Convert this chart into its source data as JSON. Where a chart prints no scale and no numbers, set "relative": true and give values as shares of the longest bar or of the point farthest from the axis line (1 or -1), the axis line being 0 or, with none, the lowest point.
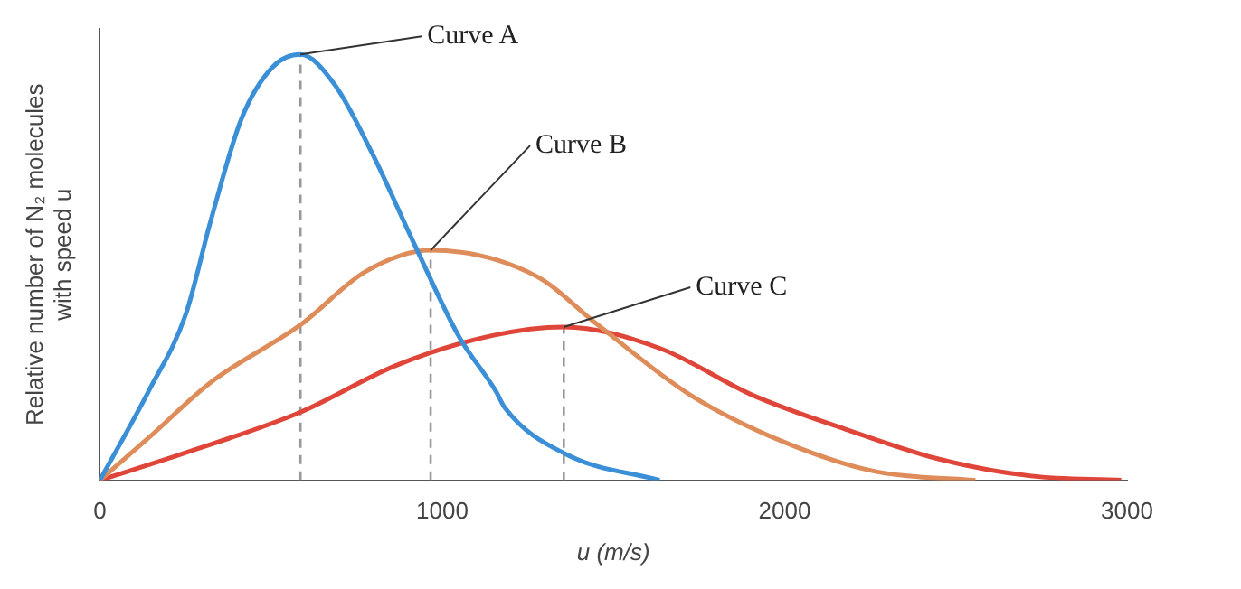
{
  "chart_data": {
    "type": "line",
    "relative": true,
    "xlabel": "u (m/s)",
    "ylabel": "Relative number of N₂ molecules\nwith speed u",
    "xlim": [
      0,
      3000
    ],
    "xticks": [
      0,
      1000,
      2000,
      3000
    ],
    "grid": false,
    "legend": false,
    "marker": "none",
    "tick_labels": "x",
    "series": [
      {
        "name": "Curve A",
        "color": "#3a8fd6",
        "x": [
          0,
          143,
          251,
          324,
          414,
          504,
          586,
          685,
          794,
          921,
          1047,
          1156,
          1183,
          1364,
          1635
        ],
        "values": [
          0,
          0.21,
          0.39,
          0.61,
          0.85,
          0.97,
          1,
          0.93,
          0.77,
          0.55,
          0.34,
          0.21,
          0.17,
          0.06,
          0
        ]
      },
      {
        "name": "Curve B",
        "color": "#de8c5a",
        "x": [
          0,
          143,
          324,
          586,
          776,
          966,
          1273,
          1454,
          1725,
          1997,
          2268,
          2557
        ],
        "values": [
          0,
          0.1,
          0.23,
          0.365,
          0.49,
          0.54,
          0.48,
          0.365,
          0.2,
          0.09,
          0.02,
          0
        ]
      },
      {
        "name": "Curve C",
        "color": "#e0453a",
        "x": [
          0,
          233,
          586,
          866,
          1147,
          1355,
          1635,
          1906,
          2177,
          2449,
          2720,
          2983
        ],
        "values": [
          0,
          0.06,
          0.16,
          0.27,
          0.34,
          0.36,
          0.31,
          0.2,
          0.12,
          0.05,
          0.01,
          0
        ]
      },
      {
        "color": "#999999",
        "line_style": "dashed",
        "x": [
          586,
          586
        ],
        "values": [
          0,
          1
        ]
      },
      {
        "color": "#999999",
        "line_style": "dashed",
        "x": [
          966,
          966
        ],
        "values": [
          0,
          0.54
        ]
      },
      {
        "color": "#999999",
        "line_style": "dashed",
        "x": [
          1355,
          1355
        ],
        "values": [
          0,
          0.36
        ]
      }
    ]
  }
}
